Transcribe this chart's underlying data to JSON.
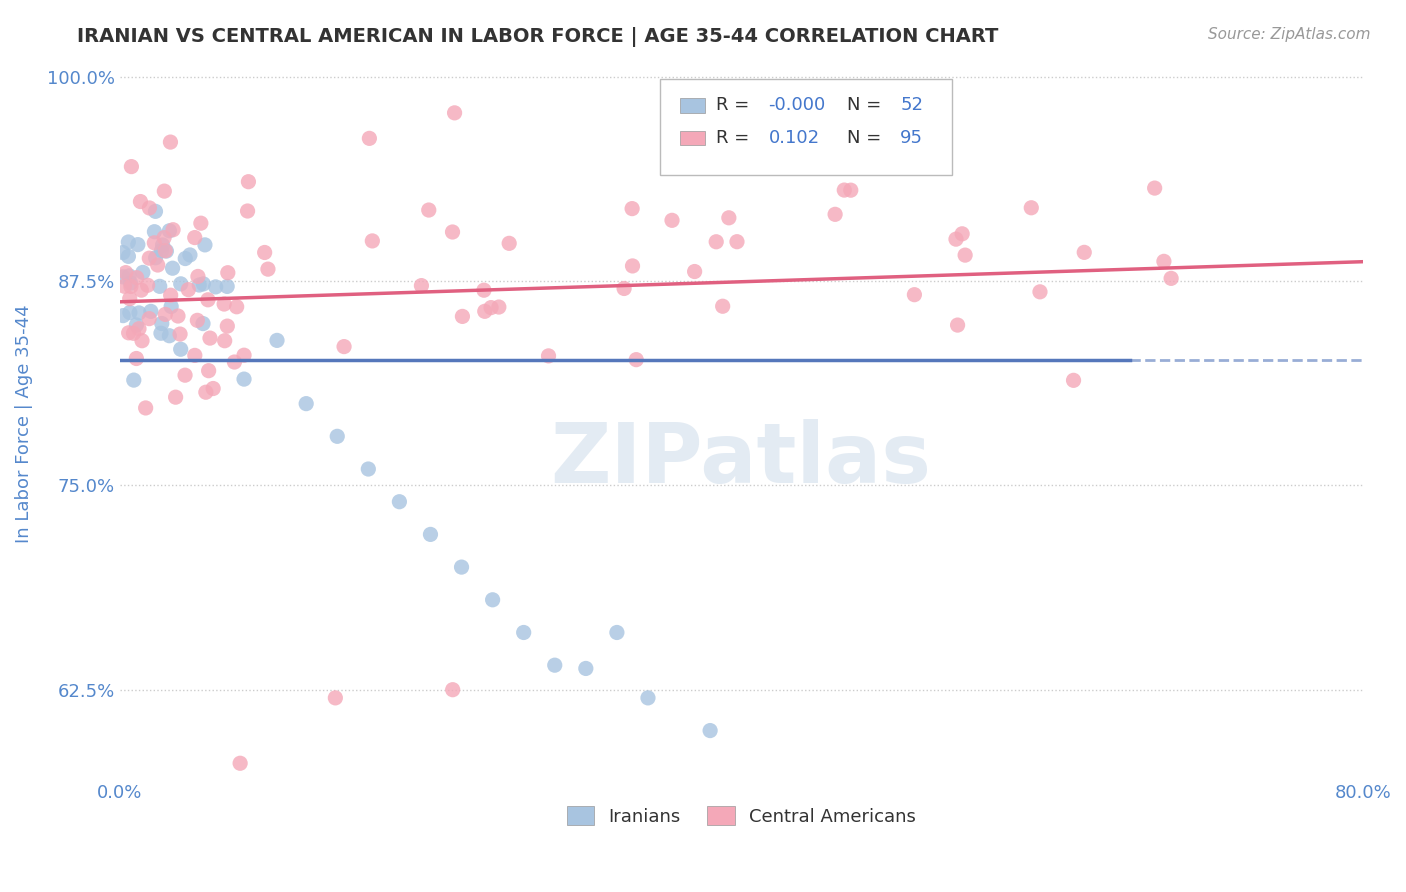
{
  "title": "IRANIAN VS CENTRAL AMERICAN IN LABOR FORCE | AGE 35-44 CORRELATION CHART",
  "source_text": "Source: ZipAtlas.com",
  "ylabel": "In Labor Force | Age 35-44",
  "xlim": [
    0.0,
    0.8
  ],
  "ylim": [
    0.57,
    1.005
  ],
  "xticks": [
    0.0,
    0.1,
    0.2,
    0.3,
    0.4,
    0.5,
    0.6,
    0.7,
    0.8
  ],
  "xticklabels": [
    "0.0%",
    "",
    "",
    "",
    "",
    "",
    "",
    "",
    "80.0%"
  ],
  "ytick_positions": [
    0.625,
    0.75,
    0.875,
    1.0
  ],
  "yticklabels": [
    "62.5%",
    "75.0%",
    "87.5%",
    "100.0%"
  ],
  "legend_R1": "-0.000",
  "legend_N1": "52",
  "legend_R2": "0.102",
  "legend_N2": "95",
  "color_iranian": "#a8c4e0",
  "color_central": "#f4a8b8",
  "line_color_iranian": "#5577bb",
  "line_color_central": "#e06080",
  "background_color": "#ffffff",
  "grid_color": "#cccccc",
  "watermark_color": "#c8d8e8",
  "title_color": "#333333",
  "axis_label_color": "#5588cc",
  "tick_label_color": "#5588cc",
  "source_color": "#999999",
  "legend_text_color": "#333333",
  "legend_value_color": "#4477cc"
}
